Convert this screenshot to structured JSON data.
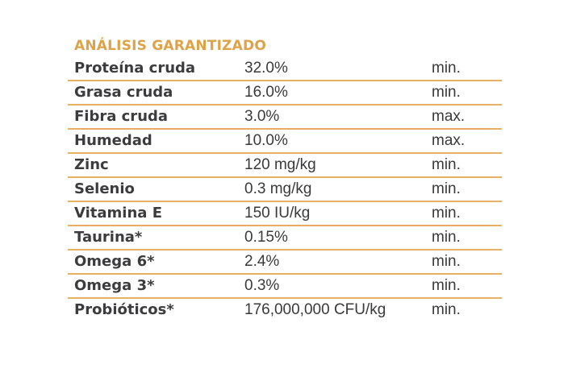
{
  "title": "ANÁLISIS GARANTIZADO",
  "colors": {
    "accent": "#dea349",
    "divider": "#e7b062",
    "text": "#3a3a3c"
  },
  "rows": [
    {
      "nutrient": "Proteína cruda",
      "value": "32.0%",
      "limit": "min."
    },
    {
      "nutrient": "Grasa cruda",
      "value": "16.0%",
      "limit": "min."
    },
    {
      "nutrient": "Fibra cruda",
      "value": "3.0%",
      "limit": "max."
    },
    {
      "nutrient": "Humedad",
      "value": "10.0%",
      "limit": "max."
    },
    {
      "nutrient": "Zinc",
      "value": "120 mg/kg",
      "limit": "min."
    },
    {
      "nutrient": "Selenio",
      "value": "0.3 mg/kg",
      "limit": "min."
    },
    {
      "nutrient": "Vitamina E",
      "value": "150 IU/kg",
      "limit": "min."
    },
    {
      "nutrient": "Taurina*",
      "value": "0.15%",
      "limit": "min."
    },
    {
      "nutrient": "Omega 6*",
      "value": "2.4%",
      "limit": "min."
    },
    {
      "nutrient": "Omega 3*",
      "value": "0.3%",
      "limit": "min."
    },
    {
      "nutrient": "Probióticos*",
      "value": "176,000,000 CFU/kg",
      "limit": "min."
    }
  ]
}
